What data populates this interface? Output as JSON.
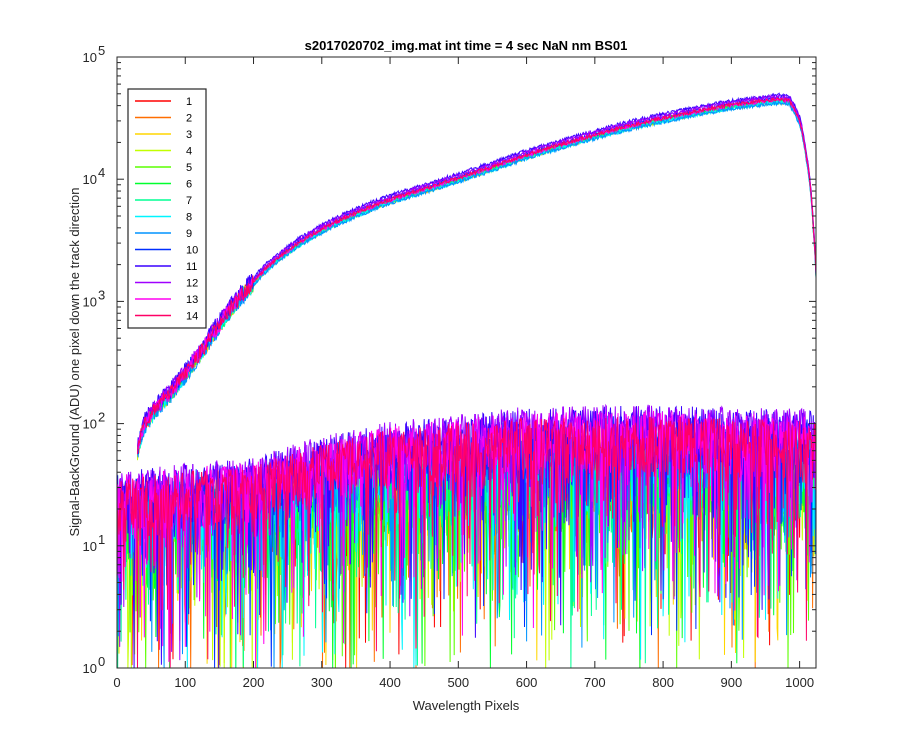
{
  "chart_data": {
    "type": "line",
    "title": "s2017020702_img.mat int time = 4 sec  NaN nm BS01",
    "xlabel": "Wavelength Pixels",
    "ylabel": "Signal-BackGround (ADU) one pixel down the track direction",
    "xlim": [
      0,
      1024
    ],
    "ylim": [
      1,
      100000
    ],
    "yscale": "log",
    "x_ticks": [
      0,
      100,
      200,
      300,
      400,
      500,
      600,
      700,
      800,
      900,
      1000
    ],
    "y_ticks": [
      {
        "value": 1,
        "base": "10",
        "exp": "0"
      },
      {
        "value": 10,
        "base": "10",
        "exp": "1"
      },
      {
        "value": 100,
        "base": "10",
        "exp": "2"
      },
      {
        "value": 1000,
        "base": "10",
        "exp": "3"
      },
      {
        "value": 10000,
        "base": "10",
        "exp": "4"
      },
      {
        "value": 100000,
        "base": "10",
        "exp": "5"
      }
    ],
    "grid": false,
    "legend_position": "top-left",
    "bright_profile": {
      "x": [
        30,
        40,
        60,
        80,
        100,
        125,
        150,
        175,
        200,
        250,
        300,
        350,
        400,
        450,
        500,
        550,
        600,
        650,
        700,
        750,
        800,
        850,
        900,
        950,
        970,
        985,
        1000,
        1010,
        1020,
        1024
      ],
      "y": [
        60,
        100,
        140,
        185,
        260,
        400,
        650,
        1000,
        1450,
        2600,
        3900,
        5300,
        6800,
        8300,
        10200,
        12600,
        15800,
        19200,
        23000,
        27300,
        31600,
        36000,
        40500,
        44000,
        45200,
        44000,
        30000,
        15000,
        4000,
        1700
      ]
    },
    "bright_series_offsets": [
      0.98,
      0.96,
      0.95,
      0.96,
      0.97,
      0.98,
      0.95,
      0.94,
      0.93,
      1.02,
      1.08,
      1.05,
      0.99,
      1.0
    ],
    "dim_series_levels": [
      {
        "x": [
          0,
          200,
          400,
          600,
          800,
          1024
        ],
        "y": [
          22,
          25,
          38,
          48,
          52,
          45
        ]
      },
      {
        "x": [
          0,
          200,
          400,
          600,
          800,
          1024
        ],
        "y": [
          18,
          22,
          33,
          42,
          45,
          40
        ]
      },
      {
        "x": [
          0,
          200,
          400,
          600,
          800,
          1024
        ],
        "y": [
          18,
          22,
          32,
          40,
          42,
          38
        ]
      },
      {
        "x": [
          0,
          200,
          400,
          600,
          800,
          1024
        ],
        "y": [
          17,
          20,
          30,
          36,
          38,
          35
        ]
      },
      {
        "x": [
          0,
          200,
          400,
          600,
          800,
          1024
        ],
        "y": [
          17,
          20,
          30,
          35,
          37,
          34
        ]
      },
      {
        "x": [
          0,
          200,
          400,
          600,
          800,
          1024
        ],
        "y": [
          18,
          22,
          32,
          38,
          40,
          36
        ]
      },
      {
        "x": [
          0,
          200,
          400,
          600,
          800,
          1024
        ],
        "y": [
          19,
          23,
          34,
          40,
          42,
          38
        ]
      },
      {
        "x": [
          0,
          200,
          400,
          600,
          800,
          1024
        ],
        "y": [
          22,
          26,
          40,
          48,
          50,
          46
        ]
      },
      {
        "x": [
          0,
          200,
          400,
          600,
          800,
          1024
        ],
        "y": [
          24,
          28,
          46,
          58,
          62,
          55
        ]
      },
      {
        "x": [
          0,
          200,
          400,
          600,
          800,
          1024
        ],
        "y": [
          26,
          32,
          60,
          78,
          82,
          75
        ]
      },
      {
        "x": [
          0,
          200,
          400,
          600,
          800,
          1024
        ],
        "y": [
          28,
          36,
          70,
          92,
          98,
          88
        ]
      },
      {
        "x": [
          0,
          200,
          400,
          600,
          800,
          1024
        ],
        "y": [
          28,
          37,
          72,
          95,
          100,
          90
        ]
      },
      {
        "x": [
          0,
          200,
          400,
          600,
          800,
          1024
        ],
        "y": [
          26,
          34,
          66,
          85,
          88,
          80
        ]
      },
      {
        "x": [
          0,
          200,
          400,
          600,
          800,
          1024
        ],
        "y": [
          24,
          32,
          62,
          78,
          80,
          72
        ]
      }
    ],
    "series": [
      {
        "name": "1",
        "color": "#ff0000"
      },
      {
        "name": "2",
        "color": "#ff6e00"
      },
      {
        "name": "3",
        "color": "#ffd600"
      },
      {
        "name": "4",
        "color": "#c2ff00"
      },
      {
        "name": "5",
        "color": "#5cff00"
      },
      {
        "name": "6",
        "color": "#00ff2e"
      },
      {
        "name": "7",
        "color": "#00ff94"
      },
      {
        "name": "8",
        "color": "#00f5ff"
      },
      {
        "name": "9",
        "color": "#0094ff"
      },
      {
        "name": "10",
        "color": "#002eff"
      },
      {
        "name": "11",
        "color": "#3a00ff"
      },
      {
        "name": "12",
        "color": "#a000ff"
      },
      {
        "name": "13",
        "color": "#ff00f0"
      },
      {
        "name": "14",
        "color": "#ff0066"
      }
    ]
  }
}
